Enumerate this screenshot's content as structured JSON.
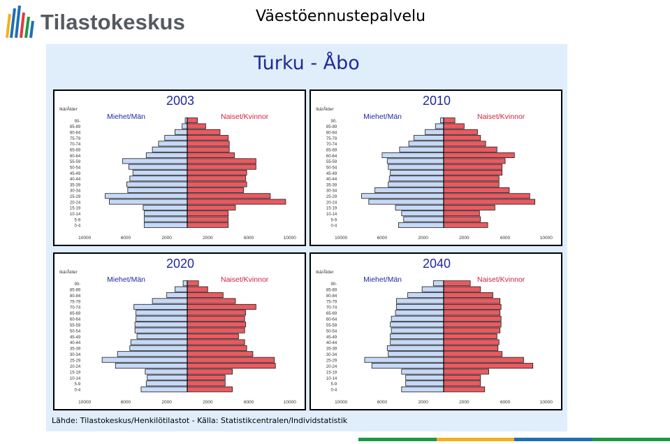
{
  "header": {
    "logo_text": "Tilastokeskus",
    "page_title": "Väestöennustepalvelu"
  },
  "main_title": "Turku  -  Åbo",
  "source": "Lähde: Tilastokeskus/Henkilötilastot  -  Källa: Statistikcentralen/Individstatistik",
  "colors": {
    "men": "#c6d9f7",
    "women": "#ea5a61",
    "title": "#1f2a9b",
    "women_label": "#d0213f",
    "panel": "#dfeefa",
    "bar_stripes": [
      "#1b9a44",
      "#f2b11b",
      "#1d6fb8",
      "#1b9a44"
    ]
  },
  "chart_data": [
    {
      "type": "bar",
      "title": "2003",
      "ylabel": "Ikä/Ålder",
      "men_label": "Miehet/Män",
      "women_label": "Naiset/Kvinnor",
      "categories": [
        "0-4",
        "5-9",
        "10-14",
        "15-19",
        "20-24",
        "25-29",
        "30-34",
        "35-39",
        "40-44",
        "45-49",
        "50-54",
        "55-59",
        "60-64",
        "65-69",
        "70-74",
        "75-79",
        "80-84",
        "85-89",
        "90-"
      ],
      "x_ticks": [
        "10000",
        "6000",
        "2000",
        "2000",
        "6000",
        "10000"
      ],
      "xlim": [
        -10000,
        10000
      ],
      "series": [
        {
          "name": "Miehet/Män",
          "values": [
            4200,
            4200,
            4200,
            4300,
            7600,
            8000,
            5800,
            5900,
            5600,
            5300,
            5700,
            6300,
            4000,
            3400,
            2800,
            2200,
            1200,
            500,
            200
          ]
        },
        {
          "name": "Naiset/Kvinnor",
          "values": [
            4000,
            4000,
            4000,
            4700,
            9600,
            8100,
            5500,
            5800,
            5700,
            5800,
            6700,
            6700,
            4600,
            4100,
            4100,
            4000,
            3200,
            1800,
            1000
          ]
        }
      ]
    },
    {
      "type": "bar",
      "title": "2010",
      "ylabel": "Ikä/Ålder",
      "men_label": "Miehet/Män",
      "women_label": "Naiset/Kvinnor",
      "categories": [
        "0-4",
        "5-9",
        "10-14",
        "15-19",
        "20-24",
        "25-29",
        "30-34",
        "35-39",
        "40-44",
        "45-49",
        "50-54",
        "55-59",
        "60-64",
        "65-69",
        "70-74",
        "75-79",
        "80-84",
        "85-89",
        "90-"
      ],
      "x_ticks": [
        "10000",
        "6000",
        "2000",
        "2000",
        "6000",
        "10000"
      ],
      "xlim": [
        -10000,
        10000
      ],
      "series": [
        {
          "name": "Miehet/Män",
          "values": [
            4400,
            3900,
            4100,
            4700,
            7300,
            8000,
            6700,
            5400,
            5300,
            5200,
            5400,
            5500,
            6000,
            4300,
            3400,
            2900,
            1800,
            800,
            300
          ]
        },
        {
          "name": "Naiset/Kvinnor",
          "values": [
            4300,
            3600,
            3500,
            5000,
            8900,
            8400,
            6400,
            5400,
            5400,
            5700,
            5700,
            6000,
            6900,
            5200,
            4100,
            3600,
            3300,
            2000,
            1100
          ]
        }
      ]
    },
    {
      "type": "bar",
      "title": "2020",
      "ylabel": "Ikä/Ålder",
      "men_label": "Miehet/Män",
      "women_label": "Naiset/Kvinnor",
      "categories": [
        "0-4",
        "5-9",
        "10-14",
        "15-19",
        "20-24",
        "25-29",
        "30-34",
        "35-39",
        "40-44",
        "45-49",
        "50-54",
        "55-59",
        "60-64",
        "65-69",
        "70-74",
        "75-79",
        "80-84",
        "85-89",
        "90-"
      ],
      "x_ticks": [
        "10000",
        "6000",
        "2000",
        "2000",
        "6000",
        "10000"
      ],
      "xlim": [
        -10000,
        10000
      ],
      "series": [
        {
          "name": "Miehet/Män",
          "values": [
            4500,
            4000,
            3900,
            4100,
            7000,
            8300,
            6800,
            5600,
            5500,
            4900,
            5100,
            5100,
            5000,
            5000,
            5200,
            3400,
            2000,
            1200,
            400
          ]
        },
        {
          "name": "Naiset/Kvinnor",
          "values": [
            4400,
            3700,
            3700,
            4400,
            8600,
            8500,
            6400,
            5800,
            5600,
            5000,
            5600,
            5700,
            5600,
            5700,
            6700,
            4700,
            3500,
            2000,
            1100
          ]
        }
      ]
    },
    {
      "type": "bar",
      "title": "2040",
      "ylabel": "Ikä/Ålder",
      "men_label": "Miehet/Män",
      "women_label": "Naiset/Kvinnor",
      "categories": [
        "0-4",
        "5-9",
        "10-14",
        "15-19",
        "20-24",
        "25-29",
        "30-34",
        "35-39",
        "40-44",
        "45-49",
        "50-54",
        "55-59",
        "60-64",
        "65-69",
        "70-74",
        "75-79",
        "80-84",
        "85-89",
        "90-"
      ],
      "x_ticks": [
        "10000",
        "6000",
        "2000",
        "2000",
        "6000",
        "10000"
      ],
      "xlim": [
        -10000,
        10000
      ],
      "series": [
        {
          "name": "Miehet/Män",
          "values": [
            4100,
            3700,
            3700,
            4100,
            7000,
            7700,
            5400,
            5500,
            5200,
            5200,
            5100,
            5200,
            5100,
            4700,
            4600,
            4600,
            3500,
            2100,
            1000
          ]
        },
        {
          "name": "Naiset/Kvinnor",
          "values": [
            4000,
            3600,
            3600,
            4400,
            8700,
            7800,
            5700,
            5300,
            5400,
            5200,
            5500,
            5600,
            5600,
            5500,
            5600,
            5500,
            4800,
            3600,
            2600
          ]
        }
      ]
    }
  ]
}
